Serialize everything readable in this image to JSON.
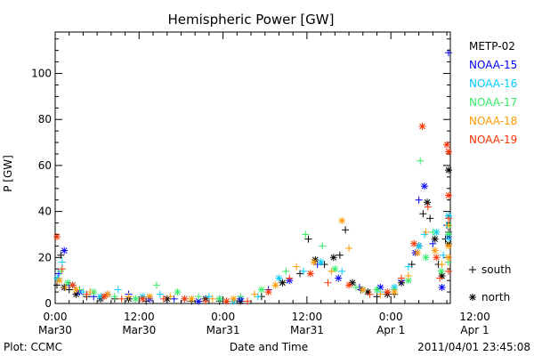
{
  "chart_data": {
    "type": "scatter",
    "title": "Hemispheric Power [GW]",
    "ylabel": "P [GW]",
    "xlabel": "Date and Time",
    "ylim": [
      0,
      118
    ],
    "yticks": [
      0,
      20,
      40,
      60,
      80,
      100
    ],
    "xlim_hours": [
      0,
      56.5
    ],
    "x_unit": "hours since 2011-03-30 00:00 UT",
    "x_ticks": [
      {
        "hours": 0,
        "line1": "0:00",
        "line2": "Mar30"
      },
      {
        "hours": 12,
        "line1": "12:00",
        "line2": "Mar30"
      },
      {
        "hours": 24,
        "line1": "0:00",
        "line2": "Mar31"
      },
      {
        "hours": 36,
        "line1": "12:00",
        "line2": "Mar31"
      },
      {
        "hours": 48,
        "line1": "0:00",
        "line2": "Apr 1"
      },
      {
        "hours": 60,
        "line1": "12:00",
        "line2": "Apr 1"
      }
    ],
    "legend_position": "right",
    "marker_legend": [
      {
        "label": "south",
        "symbol": "+"
      },
      {
        "label": "north",
        "symbol": "*"
      }
    ],
    "series": [
      {
        "name": "METP-02",
        "color": "#000000",
        "points": [
          [
            0.0,
            8,
            "+"
          ],
          [
            0.8,
            21,
            "+"
          ],
          [
            1.3,
            7,
            "*"
          ],
          [
            2.0,
            6,
            "+"
          ],
          [
            3.0,
            4,
            "*"
          ],
          [
            4.5,
            3,
            "+"
          ],
          [
            6.5,
            2,
            "*"
          ],
          [
            8.5,
            2,
            "+"
          ],
          [
            10.5,
            2,
            "*"
          ],
          [
            13.0,
            1,
            "+"
          ],
          [
            16.0,
            2,
            "*"
          ],
          [
            19.5,
            1,
            "+"
          ],
          [
            21.5,
            2,
            "*"
          ],
          [
            23.5,
            1,
            "+"
          ],
          [
            26.5,
            1,
            "*"
          ],
          [
            29.5,
            3,
            "+"
          ],
          [
            32.5,
            9,
            "*"
          ],
          [
            35.0,
            13,
            "+"
          ],
          [
            36.2,
            28,
            "+"
          ],
          [
            37.2,
            19,
            "*"
          ],
          [
            38.5,
            17,
            "+"
          ],
          [
            39.8,
            20,
            "*"
          ],
          [
            40.7,
            21,
            "+"
          ],
          [
            41.5,
            32,
            "+"
          ],
          [
            42.5,
            9,
            "*"
          ],
          [
            43.7,
            6,
            "+"
          ],
          [
            44.7,
            5,
            "*"
          ],
          [
            46.0,
            3,
            "+"
          ],
          [
            47.5,
            4,
            "*"
          ],
          [
            48.5,
            4,
            "+"
          ],
          [
            49.5,
            9,
            "*"
          ],
          [
            51.0,
            17,
            "+"
          ],
          [
            52.0,
            25,
            "*"
          ],
          [
            52.6,
            39,
            "+"
          ],
          [
            53.2,
            44,
            "*"
          ],
          [
            53.6,
            37,
            "+"
          ],
          [
            54.3,
            28,
            "*"
          ],
          [
            54.8,
            17,
            "+"
          ],
          [
            55.3,
            12,
            "*"
          ],
          [
            55.8,
            28,
            "+"
          ],
          [
            56.4,
            58,
            "*"
          ],
          [
            56.9,
            31,
            "+"
          ],
          [
            57.5,
            26,
            "*"
          ]
        ]
      },
      {
        "name": "NOAA-15",
        "color": "#0000ff",
        "points": [
          [
            0.5,
            13,
            "+"
          ],
          [
            1.3,
            23,
            "*"
          ],
          [
            2.0,
            8,
            "+"
          ],
          [
            3.5,
            5,
            "*"
          ],
          [
            5.5,
            3,
            "+"
          ],
          [
            7.5,
            4,
            "*"
          ],
          [
            10.5,
            4,
            "+"
          ],
          [
            13.5,
            2,
            "*"
          ],
          [
            17.0,
            2,
            "+"
          ],
          [
            20.5,
            1,
            "*"
          ],
          [
            23.5,
            2,
            "+"
          ],
          [
            26.5,
            2,
            "*"
          ],
          [
            30.5,
            6,
            "+"
          ],
          [
            33.5,
            10,
            "*"
          ],
          [
            37.5,
            17,
            "+"
          ],
          [
            40.5,
            11,
            "*"
          ],
          [
            43.5,
            7,
            "+"
          ],
          [
            46.5,
            7,
            "*"
          ],
          [
            49.5,
            10,
            "+"
          ],
          [
            51.5,
            22,
            "*"
          ],
          [
            52.0,
            45,
            "+"
          ],
          [
            52.8,
            51,
            "*"
          ],
          [
            54.0,
            26,
            "+"
          ],
          [
            55.3,
            7,
            "*"
          ],
          [
            56.0,
            34,
            "+"
          ],
          [
            57.0,
            109,
            "+"
          ],
          [
            58.0,
            29,
            "*"
          ]
        ]
      },
      {
        "name": "NOAA-16",
        "color": "#00ccff",
        "points": [
          [
            0.3,
            11,
            "*"
          ],
          [
            1.0,
            18,
            "+"
          ],
          [
            2.5,
            8,
            "*"
          ],
          [
            4.0,
            5,
            "+"
          ],
          [
            6.5,
            3,
            "*"
          ],
          [
            9.0,
            6,
            "+"
          ],
          [
            12.5,
            3,
            "*"
          ],
          [
            15.0,
            4,
            "+"
          ],
          [
            18.5,
            2,
            "*"
          ],
          [
            22.0,
            3,
            "+"
          ],
          [
            25.5,
            1,
            "*"
          ],
          [
            29.0,
            3,
            "+"
          ],
          [
            32.0,
            11,
            "*"
          ],
          [
            35.5,
            14,
            "+"
          ],
          [
            38.0,
            18,
            "*"
          ],
          [
            41.0,
            14,
            "+"
          ],
          [
            44.0,
            6,
            "*"
          ],
          [
            46.5,
            5,
            "+"
          ],
          [
            48.5,
            7,
            "*"
          ],
          [
            50.5,
            16,
            "+"
          ],
          [
            52.0,
            25,
            "*"
          ],
          [
            52.8,
            30,
            "+"
          ],
          [
            54.5,
            31,
            "*"
          ],
          [
            55.5,
            21,
            "+"
          ],
          [
            56.5,
            38,
            "*"
          ],
          [
            57.5,
            28,
            "+"
          ],
          [
            58.4,
            38,
            "*"
          ]
        ]
      },
      {
        "name": "NOAA-17",
        "color": "#33ee66",
        "points": [
          [
            0.8,
            14,
            "+"
          ],
          [
            1.8,
            9,
            "*"
          ],
          [
            3.5,
            6,
            "+"
          ],
          [
            5.5,
            5,
            "*"
          ],
          [
            8.5,
            3,
            "+"
          ],
          [
            11.5,
            2,
            "*"
          ],
          [
            14.5,
            8,
            "+"
          ],
          [
            17.5,
            5,
            "*"
          ],
          [
            20.5,
            3,
            "+"
          ],
          [
            23.5,
            2,
            "*"
          ],
          [
            26.5,
            3,
            "+"
          ],
          [
            29.5,
            6,
            "*"
          ],
          [
            33.0,
            14,
            "+"
          ],
          [
            35.8,
            30,
            "+"
          ],
          [
            38.2,
            25,
            "+"
          ],
          [
            40.0,
            15,
            "*"
          ],
          [
            43.0,
            7,
            "+"
          ],
          [
            46.0,
            6,
            "*"
          ],
          [
            48.5,
            6,
            "+"
          ],
          [
            50.5,
            10,
            "*"
          ],
          [
            52.2,
            62,
            "+"
          ],
          [
            53.0,
            20,
            "*"
          ],
          [
            54.0,
            31,
            "+"
          ],
          [
            55.2,
            14,
            "*"
          ],
          [
            56.2,
            18,
            "+"
          ],
          [
            57.2,
            30,
            "*"
          ],
          [
            58.2,
            47,
            "+"
          ],
          [
            58.6,
            34,
            "*"
          ]
        ]
      },
      {
        "name": "NOAA-18",
        "color": "#ff9900",
        "points": [
          [
            0.6,
            10,
            "*"
          ],
          [
            1.5,
            7,
            "+"
          ],
          [
            3.0,
            6,
            "*"
          ],
          [
            5.0,
            5,
            "+"
          ],
          [
            7.5,
            4,
            "*"
          ],
          [
            10.5,
            3,
            "+"
          ],
          [
            13.5,
            3,
            "*"
          ],
          [
            16.5,
            3,
            "+"
          ],
          [
            19.5,
            2,
            "*"
          ],
          [
            22.5,
            2,
            "+"
          ],
          [
            25.5,
            2,
            "*"
          ],
          [
            28.5,
            4,
            "+"
          ],
          [
            31.5,
            8,
            "*"
          ],
          [
            34.5,
            16,
            "+"
          ],
          [
            37.0,
            18,
            "*"
          ],
          [
            39.5,
            14,
            "+"
          ],
          [
            41.0,
            36,
            "*"
          ],
          [
            42.0,
            24,
            "+"
          ],
          [
            44.0,
            6,
            "*"
          ],
          [
            46.5,
            4,
            "+"
          ],
          [
            48.5,
            5,
            "*"
          ],
          [
            50.5,
            12,
            "+"
          ],
          [
            51.8,
            22,
            "*"
          ],
          [
            53.0,
            31,
            "+"
          ],
          [
            54.3,
            23,
            "*"
          ],
          [
            55.3,
            17,
            "+"
          ],
          [
            56.3,
            20,
            "*"
          ],
          [
            57.3,
            34,
            "+"
          ],
          [
            58.2,
            25,
            "*"
          ]
        ]
      },
      {
        "name": "NOAA-19",
        "color": "#ff3300",
        "points": [
          [
            0.2,
            29,
            "*"
          ],
          [
            1.0,
            15,
            "+"
          ],
          [
            2.5,
            8,
            "*"
          ],
          [
            4.5,
            4,
            "+"
          ],
          [
            7.0,
            3,
            "*"
          ],
          [
            9.5,
            2,
            "+"
          ],
          [
            12.5,
            2,
            "*"
          ],
          [
            15.5,
            2,
            "+"
          ],
          [
            18.5,
            2,
            "*"
          ],
          [
            21.5,
            1,
            "+"
          ],
          [
            24.5,
            1,
            "*"
          ],
          [
            27.5,
            1,
            "+"
          ],
          [
            30.5,
            5,
            "*"
          ],
          [
            33.5,
            11,
            "+"
          ],
          [
            36.5,
            13,
            "*"
          ],
          [
            39.0,
            9,
            "+"
          ],
          [
            42.0,
            8,
            "*"
          ],
          [
            45.0,
            4,
            "+"
          ],
          [
            47.5,
            5,
            "*"
          ],
          [
            49.5,
            11,
            "+"
          ],
          [
            51.3,
            26,
            "*"
          ],
          [
            52.5,
            77,
            "*"
          ],
          [
            53.3,
            42,
            "+"
          ],
          [
            54.5,
            20,
            "*"
          ],
          [
            55.0,
            11,
            "+"
          ],
          [
            56.0,
            69,
            "*"
          ],
          [
            56.6,
            37,
            "+"
          ],
          [
            57.4,
            66,
            "*"
          ],
          [
            57.9,
            14,
            "+"
          ],
          [
            58.7,
            47,
            "*"
          ]
        ]
      }
    ]
  },
  "footer": {
    "left": "Plot: CCMC",
    "center": "Date and Time",
    "right": "2011/04/01 23:45:08"
  }
}
